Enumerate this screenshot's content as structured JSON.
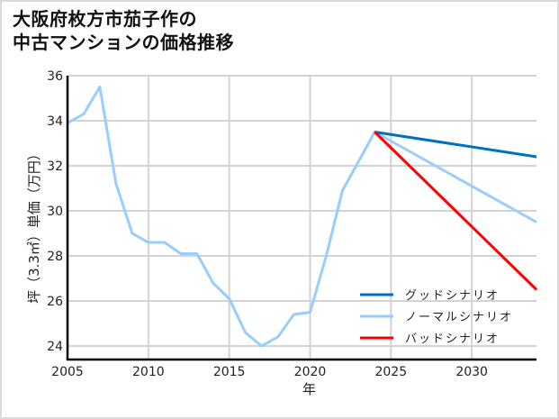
{
  "title_line1": "大阪府枚方市茄子作の",
  "title_line2": "中古マンションの価格推移",
  "colors": {
    "good": "#0070c0",
    "normal": "#99ccff",
    "bad": "#ff0000",
    "grid": "#d3d3d3",
    "axis": "#000000"
  },
  "chart_data": {
    "type": "line",
    "title": "大阪府枚方市茄子作の中古マンションの価格推移",
    "xlabel": "年",
    "ylabel": "坪（3.3㎡）単価（万円）",
    "xlim": [
      2005,
      2034
    ],
    "ylim": [
      23.4,
      36
    ],
    "xticks": [
      2005,
      2010,
      2015,
      2020,
      2025,
      2030
    ],
    "yticks": [
      24,
      26,
      28,
      30,
      32,
      34,
      36
    ],
    "grid": true,
    "legend_position": "lower right",
    "series": [
      {
        "name": "ノーマルシナリオ",
        "color": "#99ccff",
        "x": [
          2005,
          2006,
          2007,
          2008,
          2009,
          2010,
          2011,
          2012,
          2013,
          2014,
          2015,
          2016,
          2017,
          2018,
          2019,
          2020,
          2021,
          2022,
          2023,
          2024,
          2034
        ],
        "values": [
          33.9,
          34.3,
          35.5,
          31.2,
          29.0,
          28.6,
          28.6,
          28.1,
          28.1,
          26.8,
          26.1,
          24.6,
          24.0,
          24.4,
          25.4,
          25.5,
          28.0,
          30.9,
          32.2,
          33.5,
          29.5
        ]
      },
      {
        "name": "グッドシナリオ",
        "color": "#0070c0",
        "x": [
          2024,
          2034
        ],
        "values": [
          33.5,
          32.4
        ]
      },
      {
        "name": "バッドシナリオ",
        "color": "#ff0000",
        "x": [
          2024,
          2034
        ],
        "values": [
          33.5,
          26.5
        ]
      }
    ],
    "legend": [
      "グッドシナリオ",
      "ノーマルシナリオ",
      "バッドシナリオ"
    ]
  }
}
